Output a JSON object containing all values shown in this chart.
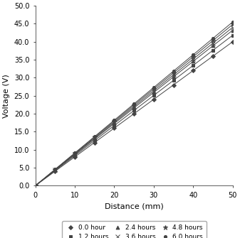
{
  "xlabel": "Distance (mm)",
  "ylabel": "Voltage (V)",
  "xlim": [
    0,
    50
  ],
  "ylim": [
    0.0,
    50.0
  ],
  "xticks": [
    0,
    10,
    20,
    30,
    40,
    50
  ],
  "yticks": [
    0.0,
    5.0,
    10.0,
    15.0,
    20.0,
    25.0,
    30.0,
    35.0,
    40.0,
    45.0,
    50.0
  ],
  "series": [
    {
      "label": "0.0 hour",
      "marker": "D",
      "markersize": 3.0,
      "end_val": 40.0
    },
    {
      "label": "1.2 hours",
      "marker": "s",
      "markersize": 3.0,
      "end_val": 41.8
    },
    {
      "label": "2.4 hours",
      "marker": "^",
      "markersize": 3.5,
      "end_val": 43.2
    },
    {
      "label": "3.6 hours",
      "marker": "x",
      "markersize": 4.0,
      "end_val": 44.0
    },
    {
      "label": "4.8 hours",
      "marker": "*",
      "markersize": 4.5,
      "end_val": 44.8
    },
    {
      "label": "6.0 hours",
      "marker": "o",
      "markersize": 3.0,
      "end_val": 45.5
    }
  ],
  "x_marker_points": [
    0,
    5,
    10,
    15,
    20,
    25,
    30,
    35,
    40,
    45,
    50
  ],
  "line_color": "#444444",
  "background_color": "#ffffff",
  "tick_fontsize": 7,
  "label_fontsize": 8,
  "legend_fontsize": 6.5,
  "linewidth": 0.7
}
